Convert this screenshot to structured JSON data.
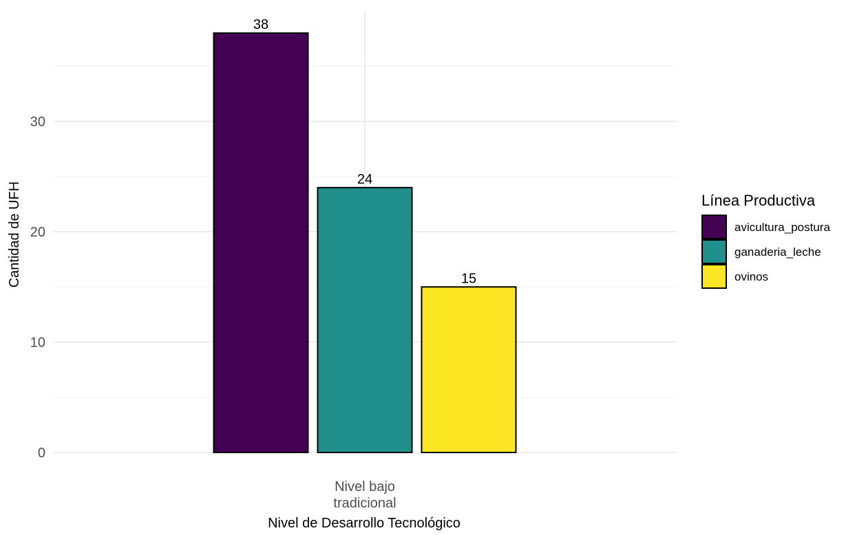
{
  "chart_data": {
    "type": "bar",
    "title": "",
    "xlabel": "Nivel de Desarrollo Tecnológico",
    "ylabel": "Cantidad de UFH",
    "categories": [
      "Nivel bajo\ntradicional"
    ],
    "series": [
      {
        "name": "avicultura_postura",
        "values": [
          38
        ],
        "color": "#440154"
      },
      {
        "name": "ganaderia_leche",
        "values": [
          24
        ],
        "color": "#21908C"
      },
      {
        "name": "ovinos",
        "values": [
          15
        ],
        "color": "#FDE725"
      }
    ],
    "ylim": [
      0,
      40
    ],
    "yticks": [
      0,
      10,
      20,
      30
    ],
    "data_labels": true,
    "grid": true,
    "legend": {
      "title": "Línea Productiva",
      "placement": "right"
    }
  }
}
